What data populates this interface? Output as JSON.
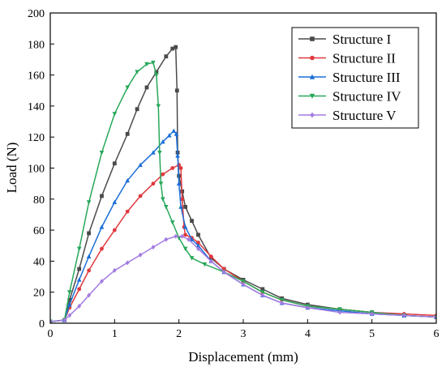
{
  "chart_data": {
    "type": "line",
    "title": "",
    "xlabel": "Displacement (mm)",
    "ylabel": "Load (N)",
    "xlim": [
      0,
      6
    ],
    "ylim": [
      0,
      200
    ],
    "xticks": [
      0,
      1,
      2,
      3,
      4,
      5,
      6
    ],
    "yticks": [
      0,
      20,
      40,
      60,
      80,
      100,
      120,
      140,
      160,
      180,
      200
    ],
    "grid": false,
    "legend_position": "top-right",
    "series": [
      {
        "name": "Structure I",
        "color": "#4a4a4a",
        "marker": "square",
        "x": [
          0,
          0.22,
          0.3,
          0.45,
          0.6,
          0.8,
          1.0,
          1.2,
          1.35,
          1.5,
          1.65,
          1.8,
          1.9,
          1.95,
          1.97,
          1.98,
          2.0,
          2.05,
          2.1,
          2.2,
          2.3,
          2.5,
          2.7,
          3.0,
          3.3,
          3.6,
          4.0,
          4.5,
          5.0,
          5.5,
          6.0
        ],
        "y": [
          1,
          2,
          15,
          35,
          58,
          82,
          103,
          122,
          138,
          152,
          162,
          172,
          177,
          178,
          150,
          110,
          95,
          85,
          75,
          66,
          57,
          42,
          35,
          28,
          22,
          16,
          12,
          9,
          7,
          5,
          4
        ]
      },
      {
        "name": "Structure II",
        "color": "#e0393e",
        "marker": "circle",
        "x": [
          0,
          0.22,
          0.3,
          0.45,
          0.6,
          0.8,
          1.0,
          1.2,
          1.4,
          1.6,
          1.75,
          1.9,
          2.0,
          2.03,
          2.05,
          2.08,
          2.1,
          2.2,
          2.3,
          2.5,
          2.7,
          3.0,
          3.3,
          3.6,
          4.0,
          4.5,
          5.0,
          5.5,
          6.0
        ],
        "y": [
          1,
          2,
          10,
          22,
          34,
          48,
          60,
          72,
          82,
          90,
          96,
          100,
          102,
          100,
          80,
          62,
          57,
          55,
          52,
          43,
          35,
          27,
          20,
          15,
          11,
          9,
          7,
          6,
          5
        ]
      },
      {
        "name": "Structure III",
        "color": "#1a6ed8",
        "marker": "triangle-up",
        "x": [
          0,
          0.22,
          0.3,
          0.45,
          0.6,
          0.8,
          1.0,
          1.2,
          1.4,
          1.6,
          1.75,
          1.85,
          1.92,
          1.96,
          1.98,
          2.0,
          2.03,
          2.1,
          2.2,
          2.3,
          2.5,
          2.7,
          3.0,
          3.3,
          3.6,
          4.0,
          4.5,
          5.0,
          5.5,
          6.0
        ],
        "y": [
          1,
          2,
          12,
          28,
          43,
          62,
          78,
          92,
          102,
          110,
          117,
          121,
          124,
          122,
          108,
          90,
          75,
          62,
          54,
          50,
          40,
          33,
          25,
          18,
          13,
          10,
          8,
          6,
          5,
          4
        ]
      },
      {
        "name": "Structure IV",
        "color": "#28a85a",
        "marker": "triangle-down",
        "x": [
          0,
          0.22,
          0.3,
          0.45,
          0.6,
          0.8,
          1.0,
          1.2,
          1.35,
          1.5,
          1.6,
          1.65,
          1.68,
          1.7,
          1.72,
          1.75,
          1.8,
          1.9,
          2.0,
          2.1,
          2.2,
          2.4,
          2.7,
          3.0,
          3.3,
          3.6,
          4.0,
          4.5,
          5.0,
          5.5,
          6.0
        ],
        "y": [
          1,
          2,
          20,
          48,
          78,
          110,
          135,
          152,
          162,
          167,
          168,
          160,
          140,
          110,
          90,
          80,
          75,
          65,
          55,
          48,
          42,
          38,
          33,
          27,
          20,
          15,
          11,
          9,
          7,
          5,
          4
        ]
      },
      {
        "name": "Structure V",
        "color": "#a37be0",
        "marker": "diamond",
        "x": [
          0,
          0.22,
          0.3,
          0.45,
          0.6,
          0.8,
          1.0,
          1.2,
          1.4,
          1.6,
          1.8,
          1.95,
          2.05,
          2.15,
          2.3,
          2.5,
          2.7,
          3.0,
          3.3,
          3.6,
          4.0,
          4.5,
          5.0,
          5.5,
          6.0
        ],
        "y": [
          1,
          2,
          5,
          11,
          18,
          27,
          34,
          39,
          44,
          49,
          54,
          56,
          56,
          54,
          48,
          40,
          33,
          25,
          18,
          13,
          10,
          7,
          6,
          5,
          4
        ]
      }
    ]
  }
}
